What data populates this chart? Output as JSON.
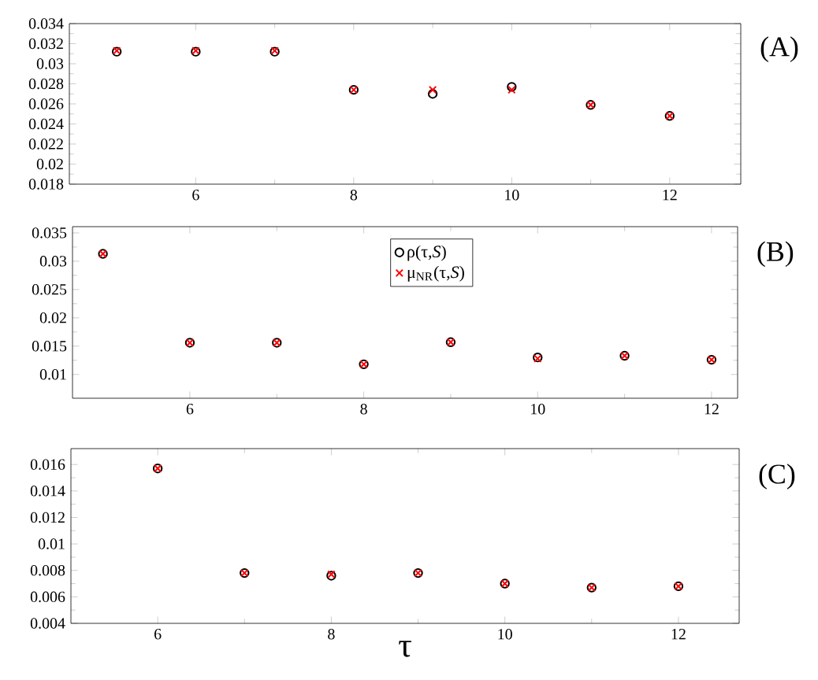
{
  "chart_data": [
    {
      "type": "scatter",
      "x": [
        5,
        6,
        7,
        8,
        9,
        10,
        11,
        12
      ],
      "xlim": [
        4.4,
        12.9
      ],
      "xticks": [
        6,
        8,
        10,
        12
      ],
      "ylim": [
        0.018,
        0.034
      ],
      "yticks": [
        0.018,
        0.02,
        0.022,
        0.024,
        0.026,
        0.028,
        0.03,
        0.032,
        0.034
      ],
      "annotations": [
        "(A)"
      ],
      "series": [
        {
          "color": "#000000",
          "marker": "circle",
          "values": [
            0.0312,
            0.0312,
            0.0312,
            0.0274,
            0.027,
            0.0277,
            0.0259,
            0.0248
          ]
        },
        {
          "color": "#ff0000",
          "marker": "cross",
          "values": [
            0.0313,
            0.0313,
            0.0313,
            0.0274,
            0.0274,
            0.0274,
            0.0259,
            0.0248
          ]
        }
      ]
    },
    {
      "type": "scatter",
      "x": [
        5,
        6,
        7,
        8,
        9,
        10,
        11,
        12
      ],
      "xlim": [
        4.65,
        12.3
      ],
      "xticks": [
        6,
        8,
        10,
        12
      ],
      "ylim": [
        0.0058,
        0.0361
      ],
      "yticks": [
        0.01,
        0.015,
        0.02,
        0.025,
        0.03,
        0.035
      ],
      "annotations": [
        "(B)"
      ],
      "legend": "top",
      "series": [
        {
          "name": "ρ(τ,*S*)",
          "color": "#000000",
          "marker": "circle",
          "values": [
            0.0313,
            0.0156,
            0.0156,
            0.0118,
            0.0157,
            0.013,
            0.0133,
            0.0126
          ]
        },
        {
          "name": "μ$_{NR}$(τ,*S*)",
          "color": "#ff0000",
          "marker": "cross",
          "values": [
            0.0313,
            0.0156,
            0.0156,
            0.0118,
            0.0157,
            0.0128,
            0.0133,
            0.0126
          ]
        }
      ]
    },
    {
      "type": "scatter",
      "x": [
        6,
        7,
        8,
        9,
        10,
        11,
        12
      ],
      "xlim": [
        5.0,
        12.7
      ],
      "xticks": [
        6,
        8,
        10,
        12
      ],
      "ylim": [
        0.004,
        0.0172
      ],
      "yticks": [
        0.004,
        0.006,
        0.008,
        0.01,
        0.012,
        0.014,
        0.016
      ],
      "annotations": [
        "(C)"
      ],
      "xlabel": "τ",
      "series": [
        {
          "color": "#000000",
          "marker": "circle",
          "values": [
            0.0157,
            0.0078,
            0.0076,
            0.0078,
            0.007,
            0.0067,
            0.0068
          ]
        },
        {
          "color": "#ff0000",
          "marker": "cross",
          "values": [
            0.0157,
            0.0078,
            0.0077,
            0.0078,
            0.007,
            0.0067,
            0.0068
          ]
        }
      ]
    }
  ]
}
